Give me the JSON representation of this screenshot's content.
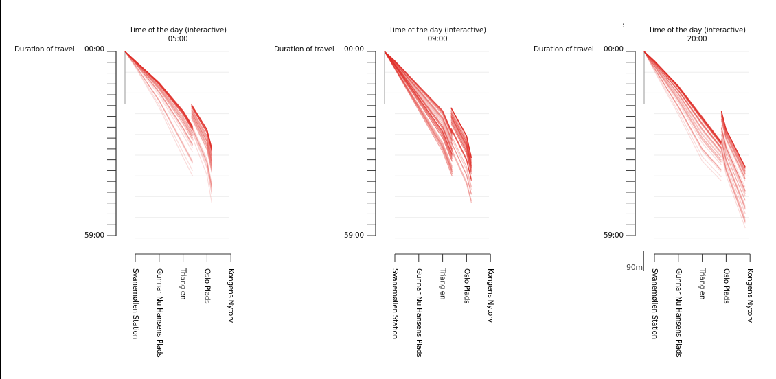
{
  "chart_data": [
    {
      "type": "line",
      "title": "Time of the day (interactive)",
      "time": "05:00",
      "ylabel": "Duration of travel",
      "y_ticks": [
        "00:00",
        "59:00"
      ],
      "ylim_minutes": [
        0,
        59
      ],
      "stops": [
        "Svanemøllen Station",
        "Gunnar Nu Hansens Plads",
        "Trianglen",
        "Oslo Plads",
        "Kongens Nytorv"
      ],
      "trip_count": 45,
      "median_trip": [
        [
          -0.43,
          0
        ],
        [
          0,
          3
        ],
        [
          1,
          10
        ],
        [
          2,
          19
        ],
        [
          2.4,
          24
        ]
      ],
      "median_trip_segment2": [
        [
          2.35,
          17
        ],
        [
          3,
          25
        ],
        [
          3.2,
          31
        ]
      ],
      "slow_trip": [
        [
          -0.43,
          0
        ],
        [
          0,
          5
        ],
        [
          1,
          18
        ],
        [
          2,
          34
        ],
        [
          2.4,
          40
        ]
      ],
      "slow_trip_segment2": [
        [
          2.35,
          27
        ],
        [
          3,
          40
        ],
        [
          3.2,
          49
        ]
      ]
    },
    {
      "type": "line",
      "title": "Time of the day (interactive)",
      "time": "09:00",
      "ylabel": "Duration of travel",
      "y_ticks": [
        "00:00",
        "59:00"
      ],
      "ylim_minutes": [
        0,
        59
      ],
      "stops": [
        "Svanemøllen Station",
        "Gunnar Nu Hansens Plads",
        "Trianglen",
        "Oslo Plads",
        "Kongens Nytorv"
      ],
      "trip_count": 50,
      "median_trip": [
        [
          -0.43,
          0
        ],
        [
          0,
          3
        ],
        [
          1,
          11
        ],
        [
          2,
          19
        ],
        [
          2.4,
          26
        ]
      ],
      "median_trip_segment2": [
        [
          2.35,
          18
        ],
        [
          3,
          27
        ],
        [
          3.2,
          34
        ]
      ],
      "slow_trip": [
        [
          -0.43,
          0
        ],
        [
          0,
          6
        ],
        [
          1,
          20
        ],
        [
          2,
          34
        ],
        [
          2.4,
          42
        ]
      ],
      "slow_trip_segment2": [
        [
          2.35,
          32
        ],
        [
          3,
          43
        ],
        [
          3.2,
          49
        ]
      ]
    },
    {
      "type": "line",
      "title": "Time of the day (interactive)",
      "time": "20:00",
      "ylabel": "Duration of travel",
      "y_ticks": [
        "00:00",
        "59:00"
      ],
      "ylim_minutes": [
        0,
        59
      ],
      "stops": [
        "Svanemøllen Station",
        "Gunnar Nu Hansens Plads",
        "Trianglen",
        "Oslo Plads",
        "Kongens Nytorv"
      ],
      "trip_count": 50,
      "median_trip": [
        [
          -0.43,
          0
        ],
        [
          0,
          3
        ],
        [
          1,
          11
        ],
        [
          2,
          21
        ],
        [
          2.8,
          29
        ]
      ],
      "median_trip_segment2": [
        [
          2.8,
          19
        ],
        [
          3,
          25
        ],
        [
          3.8,
          37
        ]
      ],
      "slow_trip": [
        [
          -0.43,
          0
        ],
        [
          0,
          7
        ],
        [
          1,
          22
        ],
        [
          2,
          38
        ],
        [
          2.8,
          44
        ]
      ],
      "slow_trip_segment2": [
        [
          2.8,
          33
        ],
        [
          3,
          40
        ],
        [
          3.8,
          57
        ]
      ]
    }
  ],
  "scale_label": "90m",
  "corner_mark": ":"
}
